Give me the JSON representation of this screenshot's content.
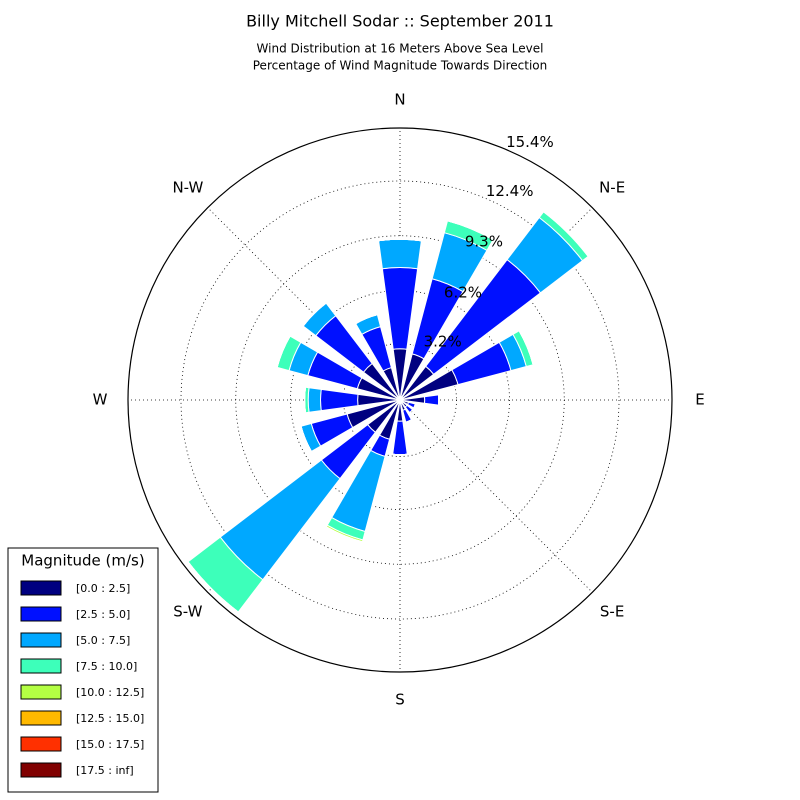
{
  "chart_data": {
    "type": "windrose",
    "title": "Billy Mitchell Sodar :: September 2011",
    "subtitle": [
      "Wind Distribution at 16 Meters Above Sea Level",
      "Percentage of Wind Magnitude Towards Direction"
    ],
    "categories": [
      "N",
      null,
      "N-E",
      null,
      "E",
      null,
      "S-E",
      null,
      "S",
      null,
      "S-W",
      null,
      "W",
      null,
      "N-W",
      null
    ],
    "rlim": [
      0,
      15.4
    ],
    "rticks": [
      {
        "value": 3.2,
        "label": "3.2%"
      },
      {
        "value": 6.2,
        "label": "6.2%"
      },
      {
        "value": 9.3,
        "label": "9.3%"
      },
      {
        "value": 12.4,
        "label": "12.4%"
      },
      {
        "value": 15.4,
        "label": "15.4%"
      }
    ],
    "grid": true,
    "legend_title": "Magnitude (m/s)",
    "legend_position": "lower left",
    "series": [
      {
        "name": "[0.0 : 2.5]",
        "color": "#000080",
        "values": [
          2.9,
          2.7,
          2.4,
          3.4,
          1.4,
          0.5,
          0.5,
          0.6,
          1.2,
          2.3,
          2.3,
          3.1,
          2.4,
          2.5,
          2.6,
          1.9
        ]
      },
      {
        "name": "[2.5 : 5.0]",
        "color": "#0010ff",
        "values": [
          4.6,
          4.4,
          7.6,
          3.1,
          0.8,
          0.4,
          0.4,
          0.7,
          1.9,
          1.0,
          3.3,
          2.1,
          2.1,
          2.9,
          3.4,
          2.4
        ]
      },
      {
        "name": "[5.0 : 7.5]",
        "color": "#00a8ff",
        "values": [
          1.6,
          2.7,
          3.0,
          0.9,
          0,
          0,
          0,
          0,
          0,
          4.4,
          7.2,
          0.6,
          0.7,
          1.1,
          0.9,
          0.7
        ]
      },
      {
        "name": "[7.5 : 10.0]",
        "color": "#3dffba",
        "values": [
          0,
          0.7,
          0.4,
          0.4,
          0,
          0,
          0,
          0,
          0,
          0.5,
          2.3,
          0,
          0.2,
          0.7,
          0,
          0
        ]
      },
      {
        "name": "[10.0 : 12.5]",
        "color": "#b4ff43",
        "values": [
          0,
          0,
          0.05,
          0,
          0,
          0,
          0,
          0,
          0,
          0.1,
          0,
          0,
          0,
          0,
          0,
          0
        ]
      },
      {
        "name": "[12.5 : 15.0]",
        "color": "#ffb900",
        "values": [
          0,
          0,
          0.05,
          0,
          0,
          0,
          0,
          0,
          0,
          0.05,
          0,
          0,
          0,
          0,
          0,
          0
        ]
      },
      {
        "name": "[15.0 : 17.5]",
        "color": "#ff3000",
        "values": [
          0,
          0,
          0,
          0,
          0,
          0,
          0,
          0,
          0,
          0,
          0,
          0,
          0,
          0,
          0,
          0
        ]
      },
      {
        "name": "[17.5 : inf]",
        "color": "#800000",
        "values": [
          0,
          0,
          0,
          0,
          0,
          0,
          0,
          0,
          0,
          0,
          0,
          0,
          0,
          0,
          0,
          0
        ]
      }
    ]
  }
}
